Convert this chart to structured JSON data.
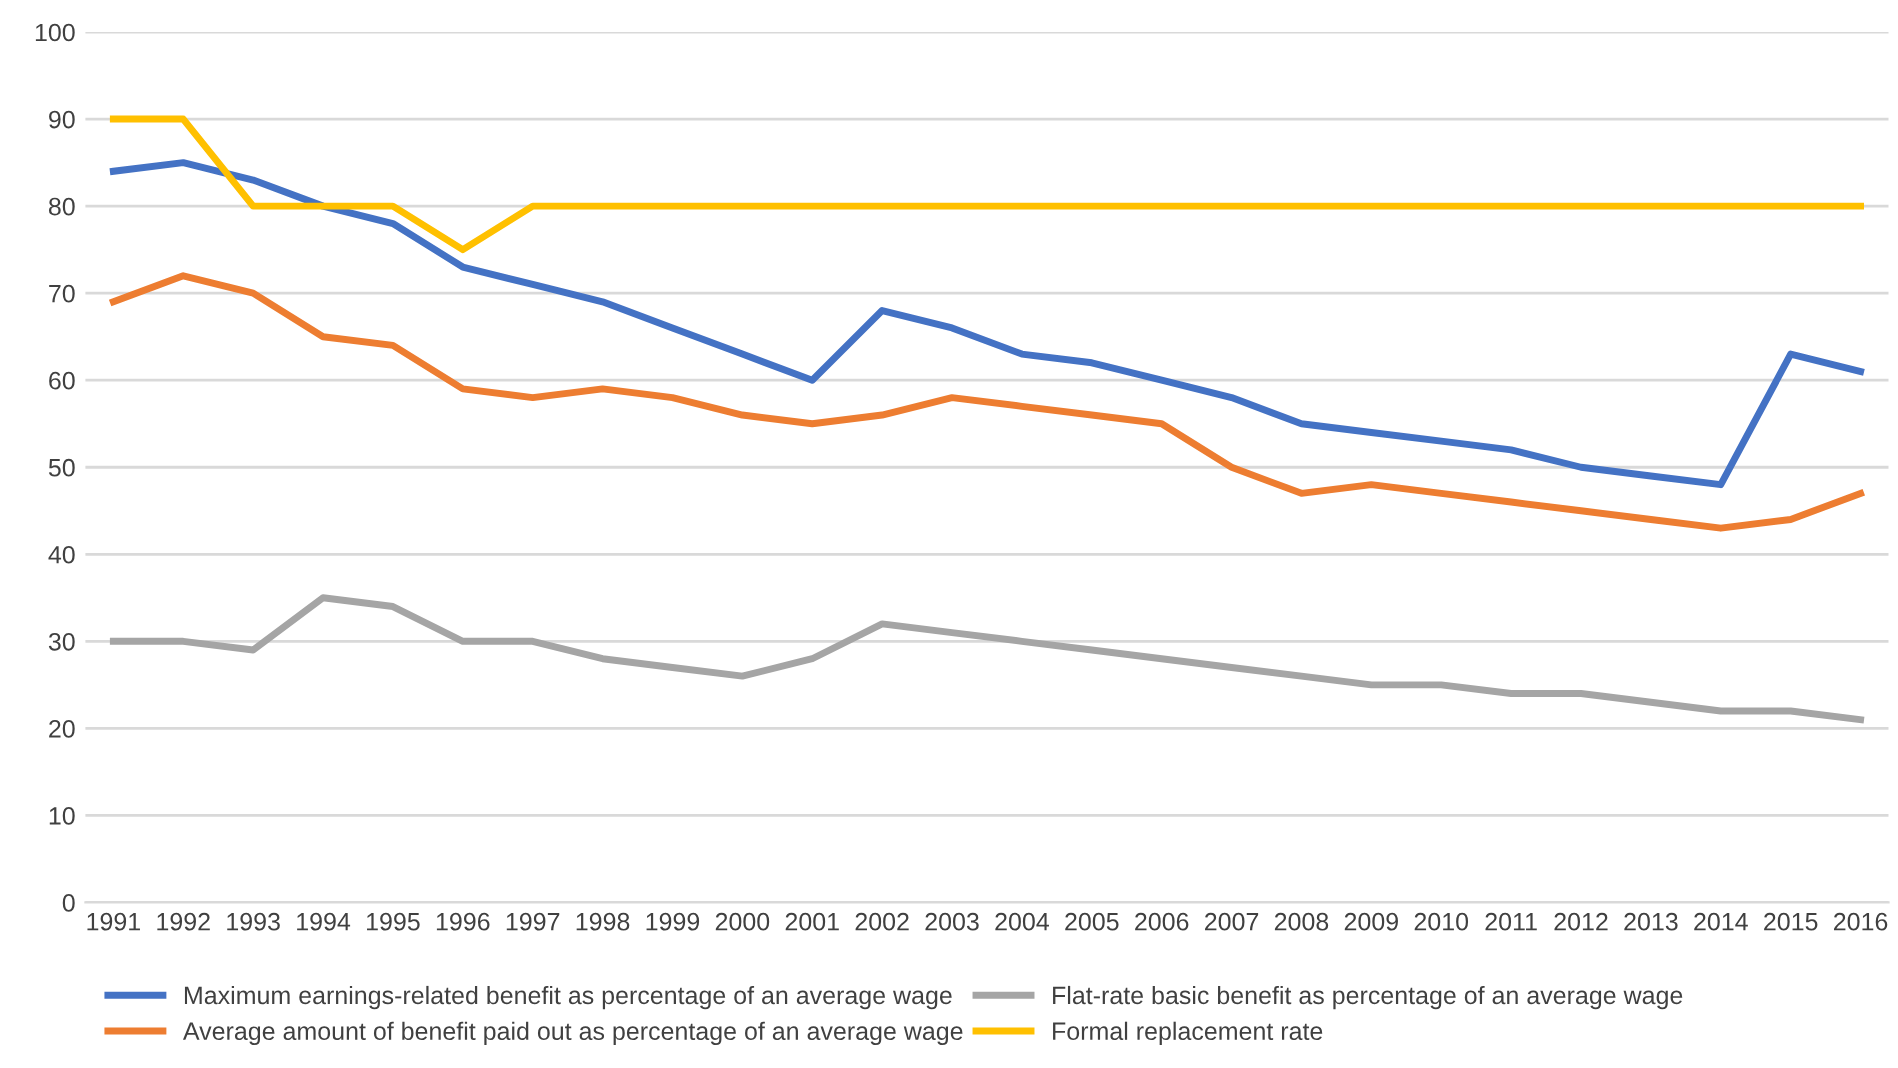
{
  "chart_data": {
    "type": "line",
    "categories": [
      "1991",
      "1992",
      "1993",
      "1994",
      "1995",
      "1996",
      "1997",
      "1998",
      "1999",
      "2000",
      "2001",
      "2002",
      "2003",
      "2004",
      "2005",
      "2006",
      "2007",
      "2008",
      "2009",
      "2010",
      "2011",
      "2012",
      "2013",
      "2014",
      "2015",
      "2016"
    ],
    "series": [
      {
        "name": "Maximum earnings-related benefit as percentage of an average wage",
        "color": "#4472c4",
        "values": [
          84,
          85,
          83,
          80,
          78,
          73,
          71,
          69,
          66,
          63,
          60,
          68,
          66,
          63,
          62,
          60,
          58,
          55,
          54,
          53,
          52,
          50,
          49,
          48,
          63,
          61
        ]
      },
      {
        "name": "Average amount of benefit paid out as percentage of an average wage",
        "color": "#ed7d31",
        "values": [
          69,
          72,
          70,
          65,
          64,
          59,
          58,
          59,
          58,
          56,
          55,
          56,
          58,
          57,
          56,
          55,
          50,
          47,
          48,
          47,
          46,
          45,
          44,
          43,
          44,
          47
        ]
      },
      {
        "name": "Flat-rate basic benefit as percentage of an average wage",
        "color": "#a5a5a5",
        "values": [
          30,
          30,
          29,
          35,
          34,
          30,
          30,
          28,
          27,
          26,
          28,
          32,
          31,
          30,
          29,
          28,
          27,
          26,
          25,
          25,
          24,
          24,
          23,
          22,
          22,
          21
        ]
      },
      {
        "name": "Formal replacement rate",
        "color": "#ffc000",
        "values": [
          90,
          90,
          80,
          80,
          80,
          75,
          80,
          80,
          80,
          80,
          80,
          80,
          80,
          80,
          80,
          80,
          80,
          80,
          80,
          80,
          80,
          80,
          80,
          80,
          80,
          80
        ]
      }
    ],
    "ylim": [
      0,
      100
    ],
    "yticks": [
      0,
      10,
      20,
      30,
      40,
      50,
      60,
      70,
      80,
      90,
      100
    ],
    "grid": "y",
    "legend": "bottom",
    "marker": "none",
    "line_style": "solid"
  }
}
